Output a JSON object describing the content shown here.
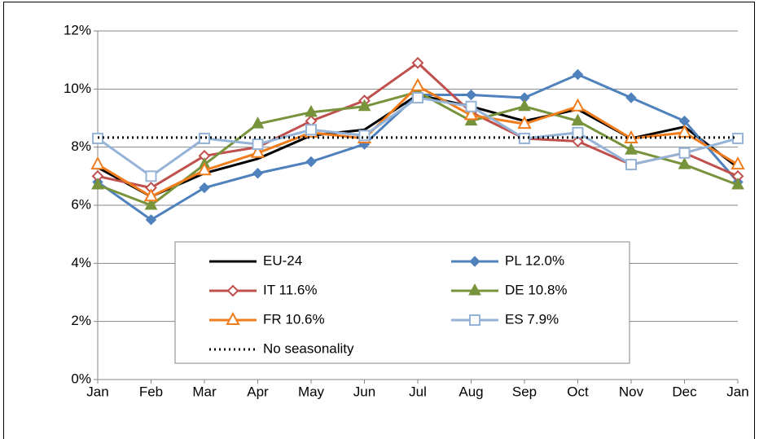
{
  "chart_data": {
    "type": "line",
    "categories": [
      "Jan",
      "Feb",
      "Mar",
      "Apr",
      "May",
      "Jun",
      "Jul",
      "Aug",
      "Sep",
      "Oct",
      "Nov",
      "Dec",
      "Jan"
    ],
    "ylim": [
      0,
      12
    ],
    "yticks": [
      {
        "value": 0,
        "label": "0%"
      },
      {
        "value": 2,
        "label": "2%"
      },
      {
        "value": 4,
        "label": "4%"
      },
      {
        "value": 6,
        "label": "6%"
      },
      {
        "value": 8,
        "label": "8%"
      },
      {
        "value": 10,
        "label": "10%"
      },
      {
        "value": 12,
        "label": "12%"
      }
    ],
    "grid": true,
    "series": [
      {
        "name": "EU-24",
        "color": "#000000",
        "marker": "none",
        "values": [
          7.3,
          6.3,
          7.1,
          7.6,
          8.4,
          8.6,
          9.8,
          9.4,
          8.9,
          9.3,
          8.3,
          8.7,
          7.3
        ]
      },
      {
        "name": "PL 12.0%",
        "color": "#4f81bd",
        "marker": "diamond-filled",
        "values": [
          6.8,
          5.5,
          6.6,
          7.1,
          7.5,
          8.1,
          9.8,
          9.8,
          9.7,
          10.5,
          9.7,
          8.9,
          6.8
        ]
      },
      {
        "name": "IT 11.6%",
        "color": "#c0504d",
        "marker": "diamond-open",
        "values": [
          7.0,
          6.6,
          7.7,
          8.0,
          8.9,
          9.6,
          10.9,
          9.2,
          8.3,
          8.2,
          7.4,
          7.8,
          7.0
        ]
      },
      {
        "name": "DE 10.8%",
        "color": "#77933c",
        "marker": "triangle-filled",
        "values": [
          6.7,
          6.0,
          7.4,
          8.8,
          9.2,
          9.4,
          9.9,
          8.9,
          9.4,
          8.9,
          7.9,
          7.4,
          6.7
        ]
      },
      {
        "name": "FR 10.6%",
        "color": "#f07c1c",
        "marker": "triangle-open",
        "values": [
          7.4,
          6.3,
          7.2,
          7.8,
          8.5,
          8.3,
          10.1,
          9.1,
          8.8,
          9.4,
          8.3,
          8.5,
          7.4
        ]
      },
      {
        "name": "ES 7.9%",
        "color": "#95b3d7",
        "marker": "square-open",
        "values": [
          8.3,
          7.0,
          8.3,
          8.1,
          8.6,
          8.4,
          9.7,
          9.4,
          8.3,
          8.5,
          7.4,
          7.8,
          8.3
        ]
      },
      {
        "name": "No seasonality",
        "color": "#000000",
        "marker": "none",
        "dotted": true,
        "values": [
          8.33,
          8.33,
          8.33,
          8.33,
          8.33,
          8.33,
          8.33,
          8.33,
          8.33,
          8.33,
          8.33,
          8.33,
          8.33
        ]
      }
    ]
  }
}
